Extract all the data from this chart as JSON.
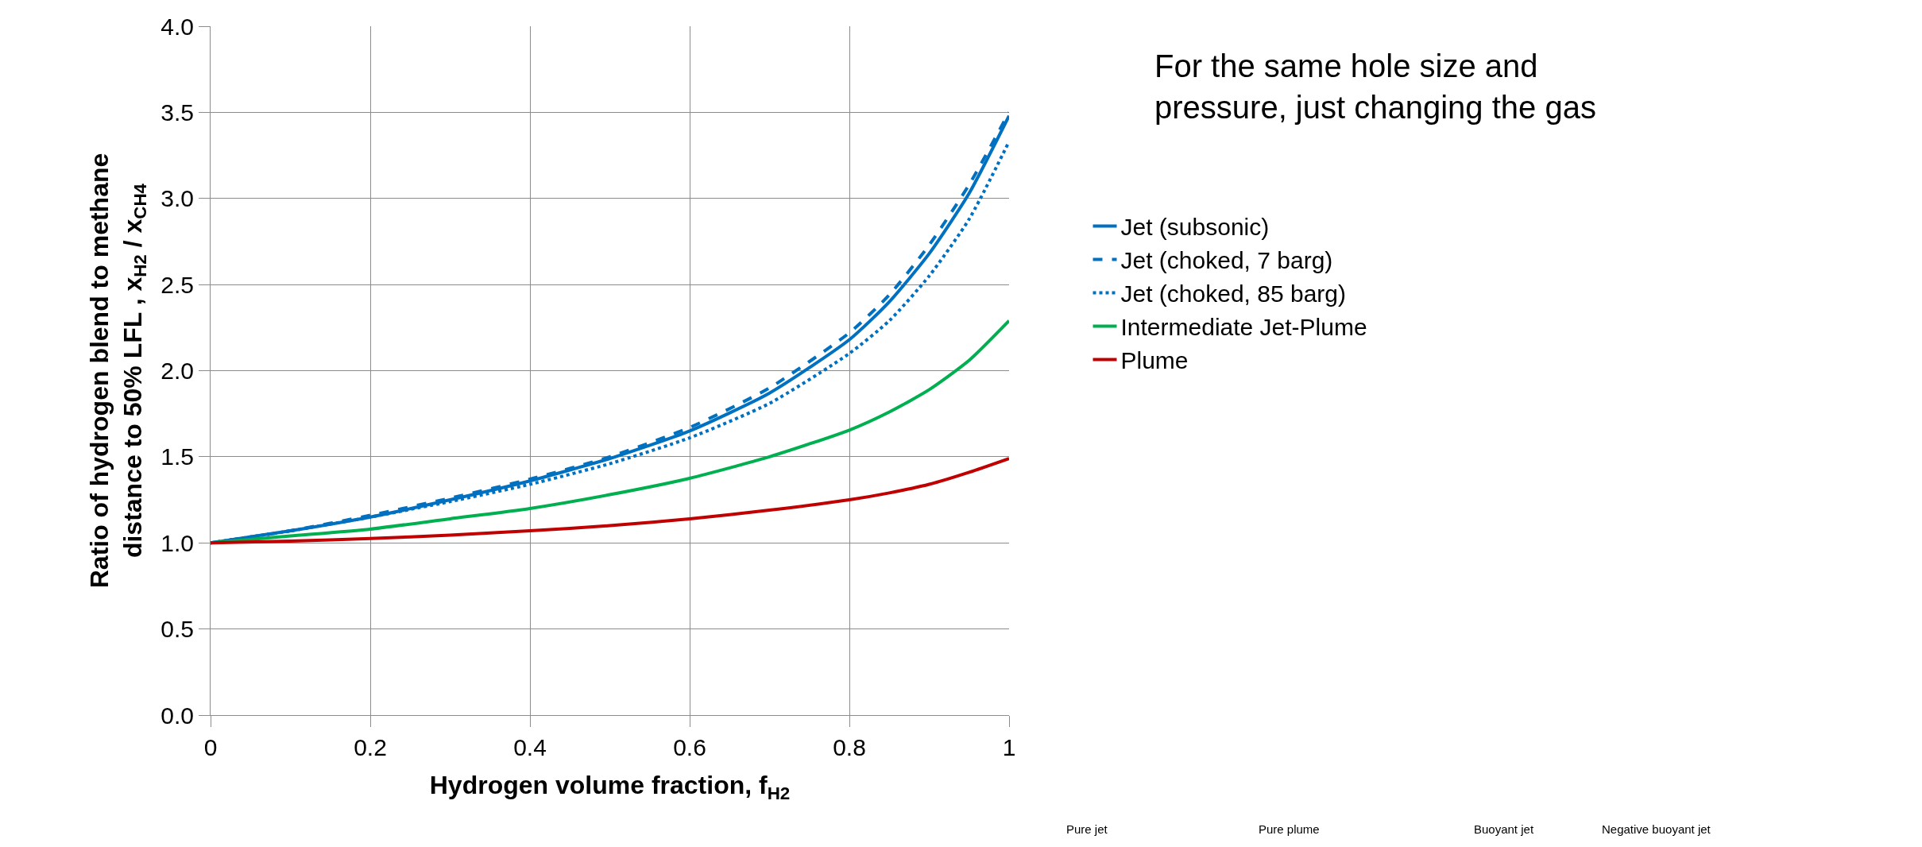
{
  "chart_data": {
    "type": "line",
    "xlabel": "Hydrogen volume fraction, f$_{H2}$",
    "ylabel": "Ratio of hydrogen blend to methane\ndistance to 50% LFL , x$_{H2}$ / x$_{CH4}$",
    "x": [
      0,
      0.1,
      0.2,
      0.3,
      0.4,
      0.5,
      0.6,
      0.7,
      0.8,
      0.85,
      0.9,
      0.95,
      1
    ],
    "series": [
      {
        "name": "Jet (subsonic)",
        "color": "#0070c0",
        "line_style": "solid",
        "values": [
          1,
          1.07,
          1.15,
          1.25,
          1.36,
          1.49,
          1.65,
          1.87,
          2.18,
          2.4,
          2.68,
          3.03,
          3.48
        ]
      },
      {
        "name": "Jet (choked, 7 barg)",
        "color": "#0070c0",
        "line_style": "dashed",
        "values": [
          1,
          1.07,
          1.16,
          1.26,
          1.37,
          1.5,
          1.67,
          1.9,
          2.22,
          2.44,
          2.73,
          3.08,
          3.5
        ]
      },
      {
        "name": "Jet (choked, 85 barg)",
        "color": "#0070c0",
        "line_style": "dotted",
        "values": [
          1,
          1.07,
          1.15,
          1.24,
          1.34,
          1.46,
          1.61,
          1.81,
          2.1,
          2.29,
          2.55,
          2.88,
          3.33
        ]
      },
      {
        "name": "Intermediate Jet-Plume",
        "color": "#00b050",
        "line_style": "solid",
        "values": [
          1,
          1.04,
          1.08,
          1.14,
          1.2,
          1.28,
          1.375,
          1.5,
          1.655,
          1.76,
          1.89,
          2.06,
          2.29
        ]
      },
      {
        "name": "Plume",
        "color": "#c00000",
        "line_style": "solid",
        "values": [
          1,
          1.01,
          1.025,
          1.045,
          1.07,
          1.1,
          1.14,
          1.19,
          1.25,
          1.29,
          1.34,
          1.41,
          1.49
        ]
      }
    ],
    "xlim": [
      0,
      1
    ],
    "xticks": [
      0,
      0.2,
      0.4,
      0.6,
      0.8,
      1
    ],
    "ylim": [
      0,
      4
    ],
    "yticks": [
      {
        "value": 0,
        "label": "0.0"
      },
      {
        "value": 0.5,
        "label": "0.5"
      },
      {
        "value": 1,
        "label": "1.0"
      },
      {
        "value": 1.5,
        "label": "1.5"
      },
      {
        "value": 2,
        "label": "2.0"
      },
      {
        "value": 2.5,
        "label": "2.5"
      },
      {
        "value": 3,
        "label": "3.0"
      },
      {
        "value": 3.5,
        "label": "3.5"
      },
      {
        "value": 4,
        "label": "4.0"
      }
    ],
    "grid": true,
    "legend": "right",
    "marker": "none",
    "annotations": [
      "For the same hole size and\npressure, just changing the gas",
      "Pure jet",
      "Pure plume",
      "Buoyant jet",
      "Negative buoyant jet"
    ]
  }
}
